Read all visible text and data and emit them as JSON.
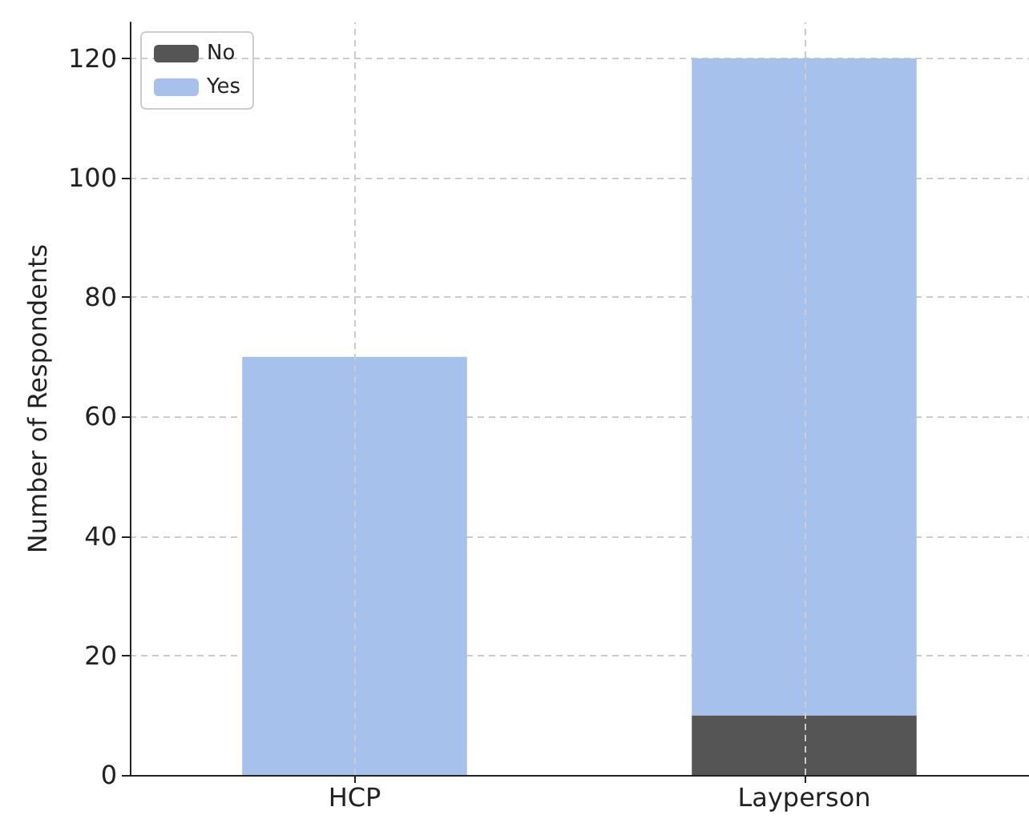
{
  "chart_data": {
    "type": "bar",
    "stacked": true,
    "ylabel": "Number of Respondents",
    "categories": [
      "HCP",
      "Layperson"
    ],
    "series": [
      {
        "name": "No",
        "color": "#555555",
        "values": [
          0,
          10
        ]
      },
      {
        "name": "Yes",
        "color": "#a7c1ed",
        "values": [
          70,
          110
        ]
      }
    ],
    "ylim": [
      0,
      126
    ],
    "yticks": [
      0,
      20,
      40,
      60,
      80,
      100,
      120
    ],
    "grid": true,
    "legend": "top left"
  }
}
